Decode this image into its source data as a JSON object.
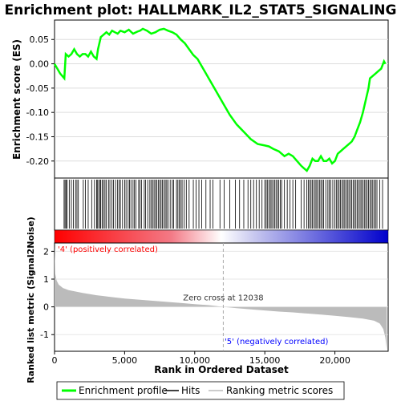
{
  "chart_data": {
    "type": "line",
    "title": "Enrichment plot: HALLMARK_IL2_STAT5_SIGNALING",
    "xlabel": "Rank in Ordered Dataset",
    "ylabel_top": "Enrichment score (ES)",
    "ylabel_bottom": "Ranked list metric (Signal2Noise)",
    "xlim": [
      0,
      23800
    ],
    "x_ticks": [
      0,
      5000,
      10000,
      15000,
      20000
    ],
    "x_tick_labels": [
      "0",
      "5,000",
      "10,000",
      "15,000",
      "20,000"
    ],
    "es_ylim": [
      -0.235,
      0.09
    ],
    "es_ticks": [
      0.05,
      0.0,
      -0.05,
      -0.1,
      -0.15,
      -0.2
    ],
    "es_tick_labels": [
      "0.05",
      "0.00",
      "-0.05",
      "-0.10",
      "-0.15",
      "-0.20"
    ],
    "metric_ylim": [
      -1.6,
      2.3
    ],
    "metric_ticks": [
      2,
      1,
      0,
      -1
    ],
    "metric_tick_labels": [
      "2",
      "1",
      "0",
      "-1"
    ],
    "zero_cross": 12038,
    "zero_cross_label": "Zero cross at 12038",
    "pos_label": "'4' (positively correlated)",
    "neg_label": "'5' (negatively correlated)",
    "es_curve": {
      "x": [
        0,
        400,
        700,
        800,
        1000,
        1200,
        1400,
        1600,
        1800,
        2000,
        2200,
        2400,
        2600,
        2800,
        3000,
        3100,
        3300,
        3500,
        3700,
        3900,
        4100,
        4300,
        4500,
        4700,
        5000,
        5300,
        5600,
        5900,
        6100,
        6300,
        6600,
        6900,
        7200,
        7500,
        7800,
        8100,
        8400,
        8700,
        9000,
        9300,
        9600,
        9900,
        10200,
        10600,
        11000,
        11500,
        12000,
        12500,
        13000,
        13500,
        14000,
        14500,
        15000,
        15300,
        15600,
        16000,
        16400,
        16700,
        17000,
        17300,
        17600,
        17800,
        18000,
        18200,
        18400,
        18600,
        18800,
        19000,
        19200,
        19400,
        19600,
        19800,
        20000,
        20200,
        20400,
        20600,
        20800,
        21000,
        21200,
        21400,
        21600,
        21800,
        22000,
        22200,
        22400,
        22500,
        22700,
        22900,
        23100,
        23300,
        23500,
        23600
      ],
      "y": [
        0.0,
        -0.02,
        -0.03,
        0.02,
        0.015,
        0.02,
        0.03,
        0.02,
        0.015,
        0.02,
        0.02,
        0.015,
        0.025,
        0.015,
        0.01,
        0.03,
        0.055,
        0.06,
        0.065,
        0.06,
        0.068,
        0.065,
        0.062,
        0.068,
        0.065,
        0.07,
        0.062,
        0.066,
        0.068,
        0.072,
        0.068,
        0.062,
        0.065,
        0.07,
        0.072,
        0.068,
        0.065,
        0.06,
        0.05,
        0.042,
        0.03,
        0.018,
        0.01,
        -0.01,
        -0.03,
        -0.055,
        -0.08,
        -0.105,
        -0.125,
        -0.14,
        -0.155,
        -0.165,
        -0.168,
        -0.17,
        -0.175,
        -0.18,
        -0.19,
        -0.185,
        -0.19,
        -0.2,
        -0.21,
        -0.215,
        -0.22,
        -0.21,
        -0.195,
        -0.2,
        -0.2,
        -0.19,
        -0.2,
        -0.2,
        -0.195,
        -0.205,
        -0.2,
        -0.185,
        -0.18,
        -0.175,
        -0.17,
        -0.165,
        -0.16,
        -0.15,
        -0.135,
        -0.12,
        -0.1,
        -0.075,
        -0.05,
        -0.03,
        -0.025,
        -0.02,
        -0.015,
        -0.01,
        0.005,
        0.0
      ]
    },
    "hits": [
      680,
      750,
      820,
      900,
      1050,
      1200,
      1350,
      1500,
      1600,
      1700,
      2050,
      2200,
      2400,
      2650,
      2850,
      3000,
      3050,
      3150,
      3250,
      3300,
      3400,
      3500,
      3600,
      3700,
      3850,
      3950,
      4100,
      4200,
      4350,
      4500,
      4600,
      4700,
      4850,
      5000,
      5100,
      5250,
      5350,
      5450,
      5600,
      5700,
      5800,
      6000,
      6100,
      6200,
      6400,
      6500,
      6650,
      6800,
      6900,
      7000,
      7100,
      7200,
      7300,
      7400,
      7500,
      7600,
      7700,
      7800,
      7900,
      8000,
      8100,
      8250,
      8400,
      8500,
      8700,
      8800,
      8900,
      9000,
      9100,
      9250,
      9400,
      9600,
      9900,
      10100,
      10300,
      10500,
      10800,
      11100,
      11300,
      11800,
      12100,
      12500,
      12900,
      13200,
      13500,
      13800,
      14000,
      14200,
      14400,
      14600,
      14800,
      15000,
      15100,
      15200,
      15300,
      15400,
      15500,
      15600,
      15700,
      15800,
      15900,
      16000,
      16100,
      16200,
      16400,
      16600,
      16800,
      17000,
      17200,
      17600,
      17800,
      18000,
      18100,
      18200,
      18300,
      18400,
      18500,
      18600,
      18700,
      18800,
      18900,
      19000,
      19100,
      19200,
      19350,
      19500,
      19600,
      19700,
      19850,
      20000,
      20100,
      20200,
      20300,
      20400,
      20500,
      20600,
      20700,
      20800,
      20900,
      21000,
      21100,
      21200,
      21300,
      21400,
      21500,
      21600,
      21700,
      21800,
      21900,
      22000,
      22100,
      22200,
      22300,
      22400,
      22500,
      22600,
      22700,
      22800,
      22900,
      23000,
      23200,
      23400
    ],
    "metric_curve": {
      "x": [
        0,
        50,
        150,
        300,
        600,
        1000,
        2000,
        3000,
        4000,
        5000,
        6000,
        7000,
        8000,
        9000,
        10000,
        11000,
        12038,
        13000,
        14000,
        15000,
        16000,
        17000,
        18000,
        19000,
        20000,
        21000,
        22000,
        22800,
        23200,
        23450,
        23600,
        23700
      ],
      "y": [
        2.2,
        1.2,
        0.95,
        0.8,
        0.68,
        0.6,
        0.5,
        0.42,
        0.36,
        0.3,
        0.26,
        0.22,
        0.18,
        0.14,
        0.1,
        0.06,
        0.0,
        -0.05,
        -0.09,
        -0.13,
        -0.17,
        -0.2,
        -0.24,
        -0.28,
        -0.32,
        -0.37,
        -0.42,
        -0.5,
        -0.6,
        -0.8,
        -1.1,
        -1.55
      ]
    }
  },
  "legend": {
    "items": [
      {
        "label": "Enrichment profile",
        "color": "#00ff00"
      },
      {
        "label": "Hits",
        "color": "#000000"
      },
      {
        "label": "Ranking metric scores",
        "color": "#bbbbbb"
      }
    ]
  },
  "colors": {
    "es_line": "#00ff00",
    "pos_text": "#ff0000",
    "neg_text": "#0000ff",
    "metric_fill": "#bbbbbb"
  }
}
